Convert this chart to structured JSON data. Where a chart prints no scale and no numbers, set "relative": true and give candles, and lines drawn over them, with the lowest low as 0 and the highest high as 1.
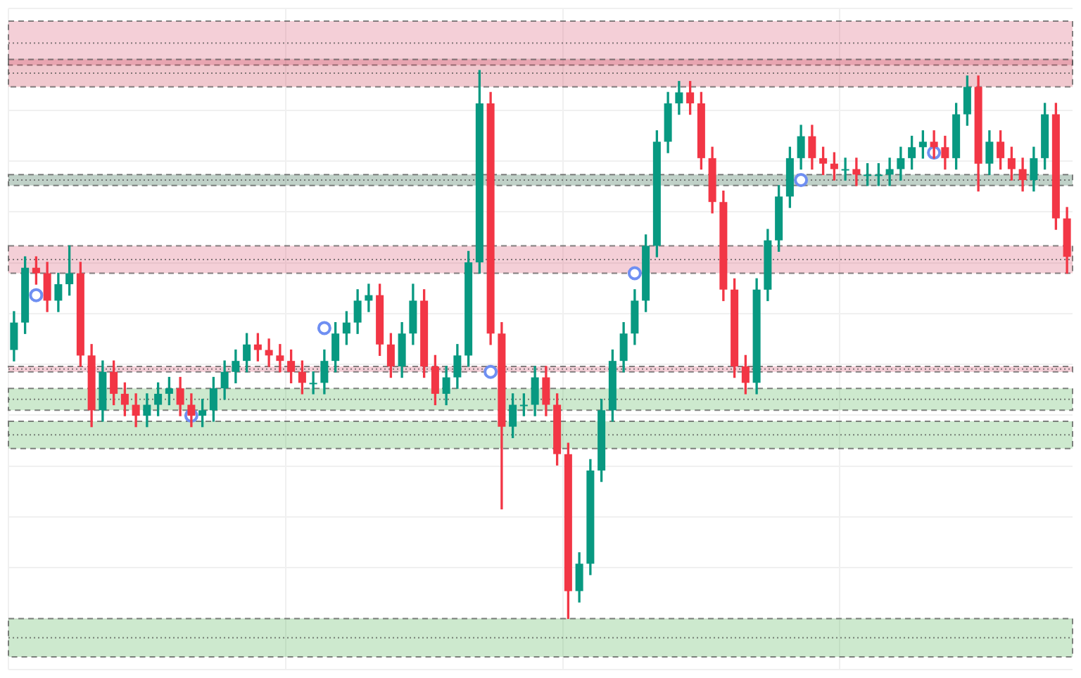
{
  "chart_data": {
    "type": "candlestick",
    "relative": true,
    "grid": true,
    "legend": false,
    "categories": [
      null,
      null,
      null,
      null,
      null,
      null,
      null,
      null,
      null,
      null,
      null,
      null,
      null,
      null,
      null,
      null,
      null,
      null,
      null,
      null,
      null,
      null,
      null,
      null,
      null,
      null,
      null,
      null,
      null,
      null,
      null,
      null,
      null,
      null,
      null,
      null,
      null,
      null,
      null,
      null,
      null,
      null,
      null,
      null,
      null,
      null,
      null,
      null,
      null,
      null,
      null,
      null,
      null,
      null,
      null,
      null,
      null,
      null,
      null,
      null,
      null,
      null,
      null,
      null,
      null,
      null,
      null,
      null,
      null,
      null,
      null,
      null,
      null,
      null,
      null,
      null,
      null,
      null,
      null,
      null,
      null,
      null,
      null,
      null,
      null,
      null,
      null,
      null,
      null,
      null,
      null,
      null,
      null,
      null,
      null,
      null
    ],
    "ohlc": [
      [
        0.49,
        0.56,
        0.47,
        0.54
      ],
      [
        0.54,
        0.66,
        0.52,
        0.64
      ],
      [
        0.64,
        0.66,
        0.61,
        0.63
      ],
      [
        0.63,
        0.65,
        0.56,
        0.58
      ],
      [
        0.58,
        0.63,
        0.56,
        0.61
      ],
      [
        0.61,
        0.68,
        0.59,
        0.63
      ],
      [
        0.63,
        0.65,
        0.46,
        0.48
      ],
      [
        0.48,
        0.5,
        0.35,
        0.38
      ],
      [
        0.38,
        0.47,
        0.36,
        0.45
      ],
      [
        0.45,
        0.47,
        0.39,
        0.41
      ],
      [
        0.41,
        0.43,
        0.37,
        0.39
      ],
      [
        0.39,
        0.41,
        0.35,
        0.37
      ],
      [
        0.37,
        0.41,
        0.35,
        0.39
      ],
      [
        0.39,
        0.43,
        0.37,
        0.41
      ],
      [
        0.41,
        0.44,
        0.39,
        0.42
      ],
      [
        0.42,
        0.44,
        0.37,
        0.39
      ],
      [
        0.39,
        0.41,
        0.35,
        0.37
      ],
      [
        0.37,
        0.4,
        0.35,
        0.38
      ],
      [
        0.38,
        0.44,
        0.36,
        0.42
      ],
      [
        0.42,
        0.47,
        0.4,
        0.45
      ],
      [
        0.45,
        0.49,
        0.43,
        0.47
      ],
      [
        0.47,
        0.52,
        0.45,
        0.5
      ],
      [
        0.5,
        0.52,
        0.47,
        0.49
      ],
      [
        0.49,
        0.51,
        0.46,
        0.48
      ],
      [
        0.48,
        0.5,
        0.45,
        0.47
      ],
      [
        0.47,
        0.49,
        0.43,
        0.45
      ],
      [
        0.45,
        0.47,
        0.41,
        0.43
      ],
      [
        0.43,
        0.45,
        0.41,
        0.43
      ],
      [
        0.43,
        0.49,
        0.41,
        0.47
      ],
      [
        0.47,
        0.54,
        0.45,
        0.52
      ],
      [
        0.52,
        0.56,
        0.5,
        0.54
      ],
      [
        0.54,
        0.6,
        0.52,
        0.58
      ],
      [
        0.58,
        0.61,
        0.56,
        0.59
      ],
      [
        0.59,
        0.61,
        0.48,
        0.5
      ],
      [
        0.5,
        0.52,
        0.44,
        0.46
      ],
      [
        0.46,
        0.54,
        0.44,
        0.52
      ],
      [
        0.52,
        0.61,
        0.5,
        0.58
      ],
      [
        0.58,
        0.6,
        0.44,
        0.46
      ],
      [
        0.46,
        0.48,
        0.39,
        0.41
      ],
      [
        0.41,
        0.46,
        0.39,
        0.44
      ],
      [
        0.44,
        0.5,
        0.42,
        0.48
      ],
      [
        0.48,
        0.67,
        0.46,
        0.65
      ],
      [
        0.65,
        1.0,
        0.63,
        0.94
      ],
      [
        0.94,
        0.96,
        0.5,
        0.52
      ],
      [
        0.52,
        0.54,
        0.2,
        0.35
      ],
      [
        0.35,
        0.41,
        0.33,
        0.39
      ],
      [
        0.39,
        0.41,
        0.37,
        0.39
      ],
      [
        0.39,
        0.46,
        0.37,
        0.44
      ],
      [
        0.44,
        0.46,
        0.37,
        0.39
      ],
      [
        0.39,
        0.41,
        0.28,
        0.3
      ],
      [
        0.3,
        0.32,
        0.0,
        0.05
      ],
      [
        0.05,
        0.12,
        0.03,
        0.1
      ],
      [
        0.1,
        0.29,
        0.08,
        0.27
      ],
      [
        0.27,
        0.4,
        0.25,
        0.38
      ],
      [
        0.38,
        0.49,
        0.36,
        0.47
      ],
      [
        0.47,
        0.54,
        0.45,
        0.52
      ],
      [
        0.52,
        0.6,
        0.5,
        0.58
      ],
      [
        0.58,
        0.7,
        0.56,
        0.68
      ],
      [
        0.68,
        0.89,
        0.66,
        0.87
      ],
      [
        0.87,
        0.96,
        0.85,
        0.94
      ],
      [
        0.94,
        0.98,
        0.92,
        0.96
      ],
      [
        0.96,
        0.98,
        0.92,
        0.94
      ],
      [
        0.94,
        0.96,
        0.82,
        0.84
      ],
      [
        0.84,
        0.86,
        0.74,
        0.76
      ],
      [
        0.76,
        0.78,
        0.58,
        0.6
      ],
      [
        0.6,
        0.62,
        0.44,
        0.46
      ],
      [
        0.46,
        0.48,
        0.41,
        0.43
      ],
      [
        0.43,
        0.62,
        0.41,
        0.6
      ],
      [
        0.6,
        0.71,
        0.58,
        0.69
      ],
      [
        0.69,
        0.79,
        0.67,
        0.77
      ],
      [
        0.77,
        0.86,
        0.75,
        0.84
      ],
      [
        0.84,
        0.9,
        0.82,
        0.88
      ],
      [
        0.88,
        0.9,
        0.82,
        0.84
      ],
      [
        0.84,
        0.86,
        0.81,
        0.83
      ],
      [
        0.83,
        0.85,
        0.8,
        0.82
      ],
      [
        0.82,
        0.84,
        0.8,
        0.82
      ],
      [
        0.82,
        0.84,
        0.79,
        0.81
      ],
      [
        0.81,
        0.83,
        0.79,
        0.81
      ],
      [
        0.81,
        0.83,
        0.79,
        0.81
      ],
      [
        0.81,
        0.84,
        0.79,
        0.82
      ],
      [
        0.82,
        0.86,
        0.8,
        0.84
      ],
      [
        0.84,
        0.88,
        0.82,
        0.86
      ],
      [
        0.86,
        0.89,
        0.84,
        0.87
      ],
      [
        0.87,
        0.89,
        0.84,
        0.86
      ],
      [
        0.86,
        0.88,
        0.82,
        0.84
      ],
      [
        0.84,
        0.94,
        0.82,
        0.92
      ],
      [
        0.92,
        0.99,
        0.9,
        0.97
      ],
      [
        0.97,
        0.99,
        0.78,
        0.83
      ],
      [
        0.83,
        0.89,
        0.81,
        0.87
      ],
      [
        0.87,
        0.89,
        0.82,
        0.84
      ],
      [
        0.84,
        0.86,
        0.8,
        0.82
      ],
      [
        0.82,
        0.84,
        0.78,
        0.8
      ],
      [
        0.8,
        0.86,
        0.78,
        0.84
      ],
      [
        0.84,
        0.94,
        0.82,
        0.92
      ],
      [
        0.92,
        0.94,
        0.71,
        0.73
      ],
      [
        0.73,
        0.75,
        0.63,
        0.66
      ]
    ],
    "colors": [
      "#089981",
      "#089981",
      "#f23645",
      "#f23645",
      "#089981",
      "#089981",
      "#f23645",
      "#f23645",
      "#089981",
      "#f23645",
      "#f23645",
      "#f23645",
      "#089981",
      "#089981",
      "#089981",
      "#f23645",
      "#f23645",
      "#089981",
      "#089981",
      "#089981",
      "#089981",
      "#089981",
      "#f23645",
      "#f23645",
      "#f23645",
      "#f23645",
      "#f23645",
      "#089981",
      "#089981",
      "#089981",
      "#089981",
      "#089981",
      "#089981",
      "#f23645",
      "#f23645",
      "#089981",
      "#089981",
      "#f23645",
      "#f23645",
      "#089981",
      "#089981",
      "#089981",
      "#089981",
      "#f23645",
      "#f23645",
      "#089981",
      "#089981",
      "#089981",
      "#f23645",
      "#f23645",
      "#f23645",
      "#089981",
      "#089981",
      "#089981",
      "#089981",
      "#089981",
      "#089981",
      "#089981",
      "#089981",
      "#089981",
      "#089981",
      "#f23645",
      "#f23645",
      "#f23645",
      "#f23645",
      "#f23645",
      "#f23645",
      "#089981",
      "#089981",
      "#089981",
      "#089981",
      "#089981",
      "#f23645",
      "#f23645",
      "#f23645",
      "#089981",
      "#f23645",
      "#089981",
      "#089981",
      "#089981",
      "#089981",
      "#089981",
      "#089981",
      "#f23645",
      "#f23645",
      "#089981",
      "#089981",
      "#f23645",
      "#089981",
      "#f23645",
      "#f23645",
      "#f23645",
      "#089981",
      "#089981",
      "#f23645",
      "#f23645"
    ],
    "series": [
      {
        "type": "scatter",
        "marker": "circle",
        "color": "#6f8ff2",
        "values": [
          null,
          null,
          0.59,
          null,
          null,
          null,
          null,
          null,
          null,
          null,
          null,
          null,
          null,
          null,
          null,
          null,
          0.37,
          null,
          null,
          null,
          null,
          null,
          null,
          null,
          null,
          null,
          null,
          null,
          0.53,
          null,
          null,
          null,
          null,
          null,
          null,
          null,
          null,
          null,
          null,
          null,
          null,
          null,
          null,
          0.45,
          null,
          null,
          null,
          null,
          null,
          null,
          null,
          null,
          null,
          null,
          null,
          null,
          0.63,
          null,
          null,
          null,
          null,
          null,
          null,
          null,
          null,
          null,
          null,
          null,
          null,
          null,
          null,
          0.8,
          null,
          null,
          null,
          null,
          null,
          null,
          null,
          null,
          null,
          null,
          null,
          0.85,
          null,
          null,
          null,
          null,
          null,
          null,
          null,
          null,
          null,
          null,
          null,
          null
        ]
      }
    ],
    "bands": [
      {
        "axis": "y",
        "from": 1.01,
        "to": 1.09,
        "color": "#d9536f"
      },
      {
        "axis": "y",
        "from": 0.97,
        "to": 1.02,
        "color": "#c8384f"
      },
      {
        "axis": "y",
        "from": 0.63,
        "to": 0.68,
        "color": "#d9536f"
      },
      {
        "axis": "y",
        "from": 0.38,
        "to": 0.42,
        "color": "#4caf50"
      },
      {
        "axis": "y",
        "from": 0.31,
        "to": 0.36,
        "color": "#4caf50"
      },
      {
        "axis": "y",
        "from": 0.45,
        "to": 0.46,
        "color": "#d9536f"
      },
      {
        "axis": "y",
        "from": 0.79,
        "to": 0.81,
        "color": "#1e5b3a"
      },
      {
        "axis": "y",
        "from": -0.07,
        "to": 0.0,
        "color": "#4caf50"
      }
    ]
  }
}
